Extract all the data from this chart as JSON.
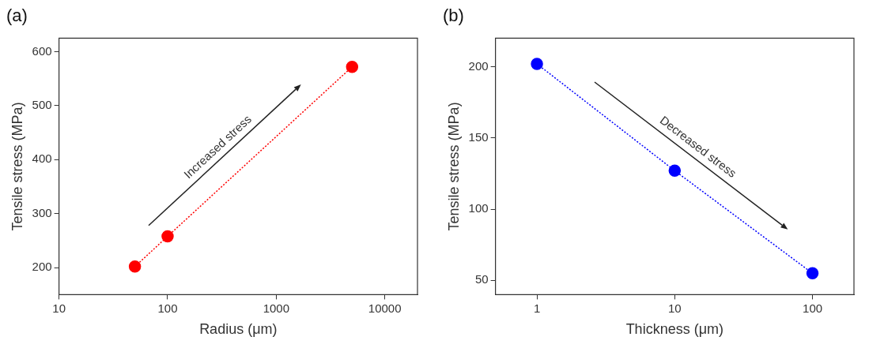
{
  "chart_data": [
    {
      "type": "line",
      "title": "(a)",
      "xlabel": "Radius (μm)",
      "ylabel": "Tensile stress (MPa)",
      "log": "x",
      "x": [
        50,
        100,
        5000
      ],
      "series": [
        {
          "color": "#ff0000",
          "values": [
            202,
            258,
            572
          ]
        }
      ],
      "xlim": [
        10,
        20000
      ],
      "xticks": [
        10,
        100,
        1000,
        10000
      ],
      "ylim": [
        150,
        625
      ],
      "yticks": [
        200,
        300,
        400,
        500,
        600
      ],
      "marker": "circle",
      "line_style": "dotted",
      "grid": false,
      "legend": false,
      "annotations": [
        "Increased stress"
      ]
    },
    {
      "type": "line",
      "title": "(b)",
      "xlabel": "Thickness (μm)",
      "ylabel": "Tensile stress (MPa)",
      "log": "x",
      "x": [
        1,
        10,
        100
      ],
      "series": [
        {
          "color": "#0000ff",
          "values": [
            202,
            127,
            55
          ]
        }
      ],
      "xlim": [
        0.5,
        200
      ],
      "xticks": [
        1,
        10,
        100
      ],
      "ylim": [
        40,
        220
      ],
      "yticks": [
        50,
        100,
        150,
        200
      ],
      "marker": "circle",
      "line_style": "dotted",
      "grid": false,
      "legend": false,
      "annotations": [
        "Decreased stress"
      ]
    }
  ]
}
